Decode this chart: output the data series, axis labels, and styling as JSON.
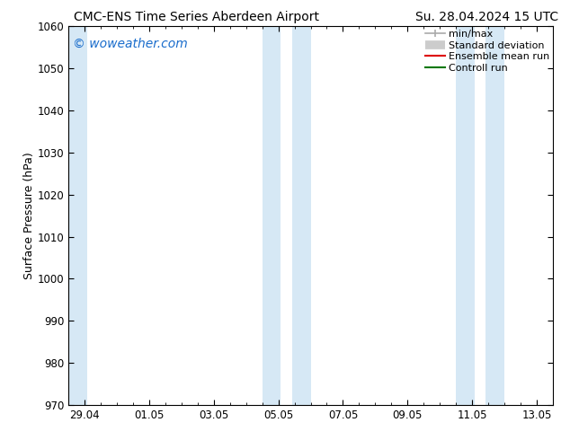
{
  "title_left": "CMC-ENS Time Series Aberdeen Airport",
  "title_right": "Su. 28.04.2024 15 UTC",
  "ylabel": "Surface Pressure (hPa)",
  "ylim": [
    970,
    1060
  ],
  "yticks": [
    970,
    980,
    990,
    1000,
    1010,
    1020,
    1030,
    1040,
    1050,
    1060
  ],
  "x_tick_labels": [
    "29.04",
    "01.05",
    "03.05",
    "05.05",
    "07.05",
    "09.05",
    "11.05",
    "13.05"
  ],
  "x_tick_positions": [
    0,
    2,
    4,
    6,
    8,
    10,
    12,
    14
  ],
  "xlim": [
    -0.5,
    14.5
  ],
  "shaded_bands": [
    {
      "x_start": -0.5,
      "x_end": 0.08
    },
    {
      "x_start": 5.5,
      "x_end": 6.08
    },
    {
      "x_start": 6.42,
      "x_end": 7.0
    },
    {
      "x_start": 11.5,
      "x_end": 12.08
    },
    {
      "x_start": 12.42,
      "x_end": 13.0
    }
  ],
  "shade_color": "#d6e8f5",
  "legend_items": [
    {
      "label": "min/max",
      "color": "#aaaaaa",
      "lw": 1.2,
      "style": "solid",
      "type": "line_with_ticks"
    },
    {
      "label": "Standard deviation",
      "color": "#cccccc",
      "lw": 7,
      "style": "solid",
      "type": "thick_line"
    },
    {
      "label": "Ensemble mean run",
      "color": "#dd0000",
      "lw": 1.5,
      "style": "solid",
      "type": "line"
    },
    {
      "label": "Controll run",
      "color": "#007700",
      "lw": 1.5,
      "style": "solid",
      "type": "line"
    }
  ],
  "watermark_text": "© woweather.com",
  "watermark_color": "#1a6dcc",
  "watermark_fontsize": 10,
  "background_color": "#ffffff",
  "title_fontsize": 10,
  "label_fontsize": 9,
  "tick_fontsize": 8.5,
  "legend_fontsize": 8
}
